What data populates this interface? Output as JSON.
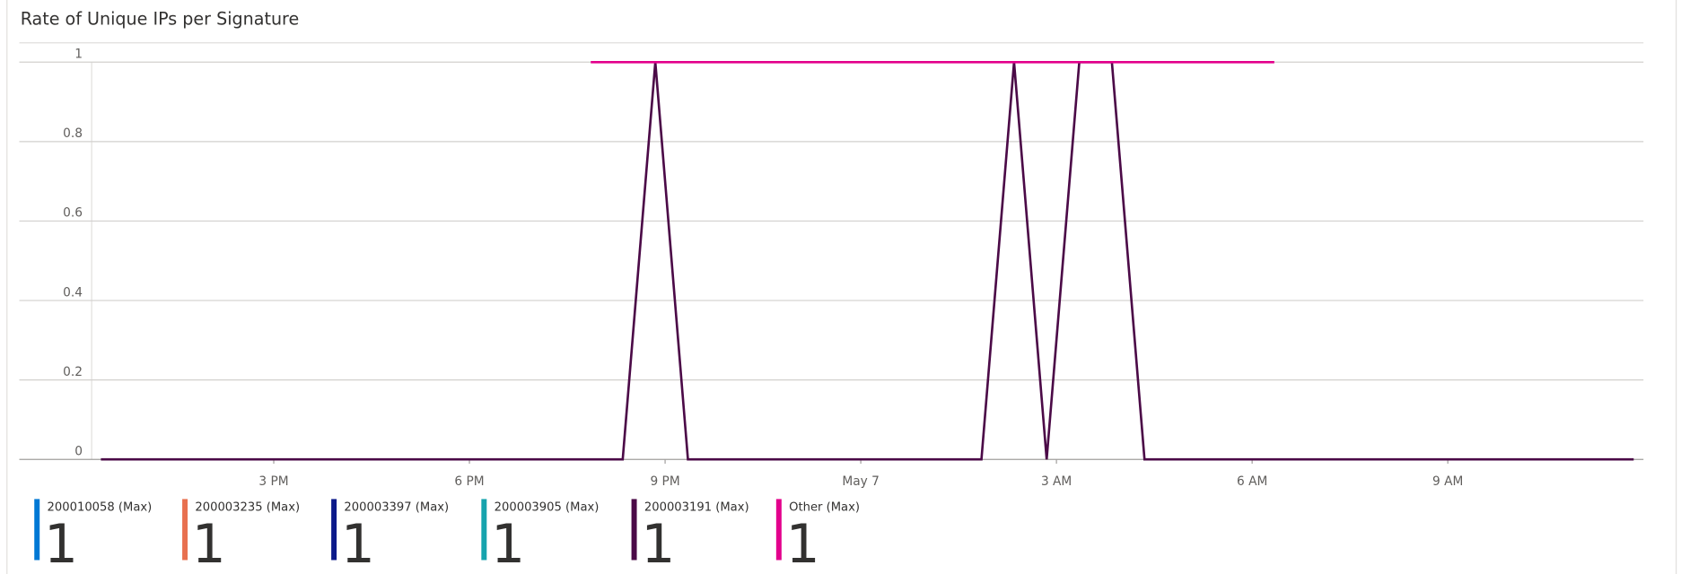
{
  "chart_data": {
    "type": "line",
    "title": "Rate of Unique IPs per Signature",
    "xlim": [
      12.2,
      36
    ],
    "ylim": [
      0,
      1
    ],
    "xticks": [
      {
        "value": 15,
        "label": "3 PM"
      },
      {
        "value": 18,
        "label": "6 PM"
      },
      {
        "value": 21,
        "label": "9 PM"
      },
      {
        "value": 24,
        "label": "May 7"
      },
      {
        "value": 27,
        "label": "3 AM"
      },
      {
        "value": 30,
        "label": "6 AM"
      },
      {
        "value": 33,
        "label": "9 AM"
      }
    ],
    "yticks": [
      0,
      0.2,
      0.4,
      0.6,
      0.8,
      1
    ],
    "grid": true,
    "series": [
      {
        "name": "200010058 (Max)",
        "color": "#0078d4",
        "legend_value": 1,
        "x": [],
        "values": []
      },
      {
        "name": "200003235 (Max)",
        "color": "#e8704f",
        "legend_value": 1,
        "x": [],
        "values": []
      },
      {
        "name": "200003397 (Max)",
        "color": "#0c1a8a",
        "legend_value": 1,
        "x": [],
        "values": []
      },
      {
        "name": "200003905 (Max)",
        "color": "#16a3ad",
        "legend_value": 1,
        "x": [],
        "values": []
      },
      {
        "name": "200003191 (Max)",
        "color": "#4b0a47",
        "legend_value": 1,
        "x": [
          12.35,
          20.35,
          20.85,
          21.35,
          25.85,
          26.35,
          26.85,
          27.35,
          27.85,
          28.35,
          35.85
        ],
        "values": [
          0,
          0,
          1,
          0,
          0,
          1,
          0,
          1,
          1,
          0,
          0
        ]
      },
      {
        "name": "Other (Max)",
        "color": "#e3008c",
        "legend_value": 1,
        "x": [
          19.86,
          30.34
        ],
        "values": [
          1,
          1
        ]
      }
    ]
  }
}
